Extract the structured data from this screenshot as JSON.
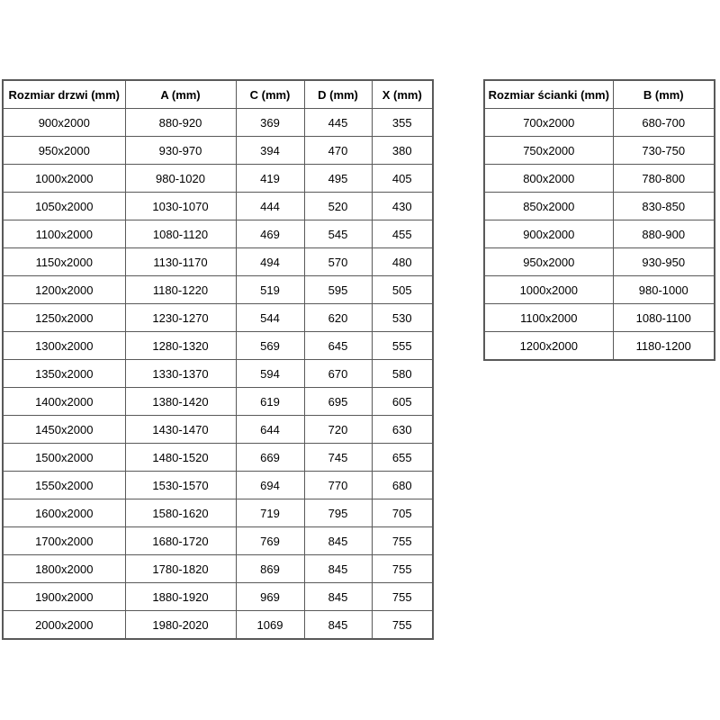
{
  "colors": {
    "background": "#ffffff",
    "border": "#595959",
    "text": "#000000"
  },
  "doors_table": {
    "headers": [
      "Rozmiar drzwi (mm)",
      "A (mm)",
      "C (mm)",
      "D (mm)",
      "X (mm)"
    ],
    "rows": [
      [
        "900x2000",
        "880-920",
        "369",
        "445",
        "355"
      ],
      [
        "950x2000",
        "930-970",
        "394",
        "470",
        "380"
      ],
      [
        "1000x2000",
        "980-1020",
        "419",
        "495",
        "405"
      ],
      [
        "1050x2000",
        "1030-1070",
        "444",
        "520",
        "430"
      ],
      [
        "1100x2000",
        "1080-1120",
        "469",
        "545",
        "455"
      ],
      [
        "1150x2000",
        "1130-1170",
        "494",
        "570",
        "480"
      ],
      [
        "1200x2000",
        "1180-1220",
        "519",
        "595",
        "505"
      ],
      [
        "1250x2000",
        "1230-1270",
        "544",
        "620",
        "530"
      ],
      [
        "1300x2000",
        "1280-1320",
        "569",
        "645",
        "555"
      ],
      [
        "1350x2000",
        "1330-1370",
        "594",
        "670",
        "580"
      ],
      [
        "1400x2000",
        "1380-1420",
        "619",
        "695",
        "605"
      ],
      [
        "1450x2000",
        "1430-1470",
        "644",
        "720",
        "630"
      ],
      [
        "1500x2000",
        "1480-1520",
        "669",
        "745",
        "655"
      ],
      [
        "1550x2000",
        "1530-1570",
        "694",
        "770",
        "680"
      ],
      [
        "1600x2000",
        "1580-1620",
        "719",
        "795",
        "705"
      ],
      [
        "1700x2000",
        "1680-1720",
        "769",
        "845",
        "755"
      ],
      [
        "1800x2000",
        "1780-1820",
        "869",
        "845",
        "755"
      ],
      [
        "1900x2000",
        "1880-1920",
        "969",
        "845",
        "755"
      ],
      [
        "2000x2000",
        "1980-2020",
        "1069",
        "845",
        "755"
      ]
    ]
  },
  "walls_table": {
    "headers": [
      "Rozmiar ścianki (mm)",
      "B (mm)"
    ],
    "rows": [
      [
        "700x2000",
        "680-700"
      ],
      [
        "750x2000",
        "730-750"
      ],
      [
        "800x2000",
        "780-800"
      ],
      [
        "850x2000",
        "830-850"
      ],
      [
        "900x2000",
        "880-900"
      ],
      [
        "950x2000",
        "930-950"
      ],
      [
        "1000x2000",
        "980-1000"
      ],
      [
        "1100x2000",
        "1080-1100"
      ],
      [
        "1200x2000",
        "1180-1200"
      ]
    ]
  }
}
